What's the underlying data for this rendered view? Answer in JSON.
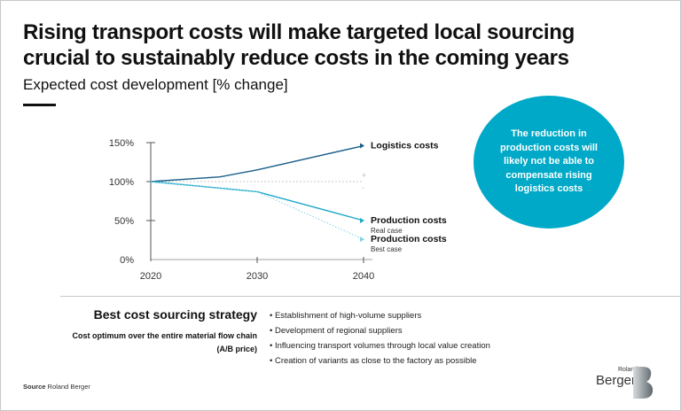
{
  "header": {
    "title": "Rising transport costs will make targeted local sourcing crucial to sustainably reduce costs in the coming years",
    "subtitle": "Expected cost development [% change]"
  },
  "callout": {
    "text": "The reduction in production costs will likely not be able to compensate rising logistics costs",
    "color": "#00a9c7"
  },
  "chart_data": {
    "type": "line",
    "title": "Expected cost development [% change]",
    "xlabel": "",
    "ylabel": "% change",
    "x_ticks": [
      "2020",
      "2030",
      "2040"
    ],
    "y_ticks": [
      "0%",
      "50%",
      "100%",
      "150%"
    ],
    "xlim": [
      2020,
      2040
    ],
    "ylim": [
      0,
      150
    ],
    "reference_line": {
      "y": 100,
      "style": "dotted",
      "marks": [
        "+",
        "-"
      ]
    },
    "series": [
      {
        "name": "Logistics costs",
        "sublabel": "",
        "color": "#1a5e8a",
        "style": "solid",
        "x": [
          2020,
          2026.5,
          2030,
          2040
        ],
        "y": [
          100,
          106,
          115,
          146
        ]
      },
      {
        "name": "Production costs",
        "sublabel": "Real case",
        "color": "#1fa9c9",
        "style": "solid",
        "x": [
          2020,
          2030,
          2040
        ],
        "y": [
          100,
          87,
          50
        ]
      },
      {
        "name": "Production costs",
        "sublabel": "Best case",
        "color": "#7fd3e3",
        "style": "dotted",
        "x": [
          2020,
          2030,
          2040
        ],
        "y": [
          100,
          87,
          26
        ]
      }
    ]
  },
  "strategy": {
    "title": "Best cost sourcing strategy",
    "subtitle": "Cost optimum over the entire material flow chain (A/B price)",
    "bullets": [
      "Establishment of high-volume suppliers",
      "Development of regional suppliers",
      "Influencing transport volumes through local value creation",
      "Creation of variants as close to the factory as possible"
    ]
  },
  "footer": {
    "source_label": "Source",
    "source_value": "Roland Berger",
    "logo_small": "Roland",
    "logo_big": "Berger"
  }
}
